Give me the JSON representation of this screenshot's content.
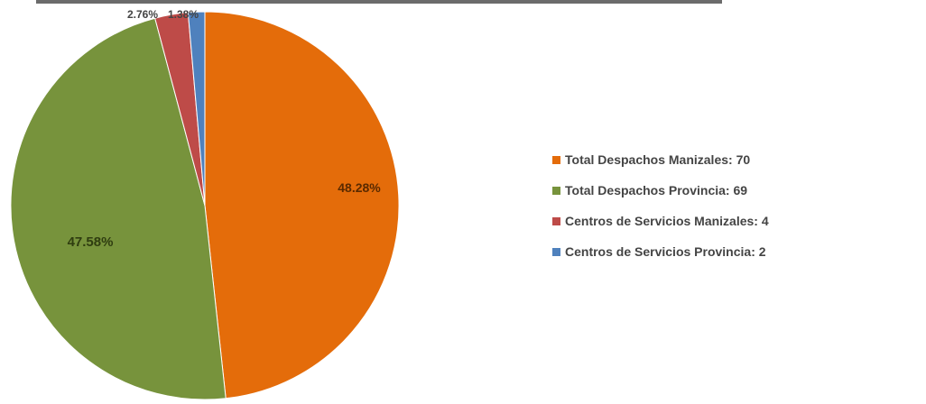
{
  "chart_data": {
    "type": "pie",
    "title": "",
    "slices": [
      {
        "name": "Total Despachos Manizales: 70",
        "value": 48.28,
        "label": "48.28%",
        "color": "#e46c0a"
      },
      {
        "name": "Total Despachos Provincia: 69",
        "value": 47.58,
        "label": "47.58%",
        "color": "#77933c"
      },
      {
        "name": "Centros de Servicios Manizales: 4",
        "value": 2.76,
        "label": "2.76%",
        "color": "#be4b48"
      },
      {
        "name": "Centros de Servicios Provincia: 2",
        "value": 1.38,
        "label": "1.38%",
        "color": "#4f81bd"
      }
    ],
    "legend_position": "right",
    "start_angle": "12 o'clock, clockwise"
  }
}
